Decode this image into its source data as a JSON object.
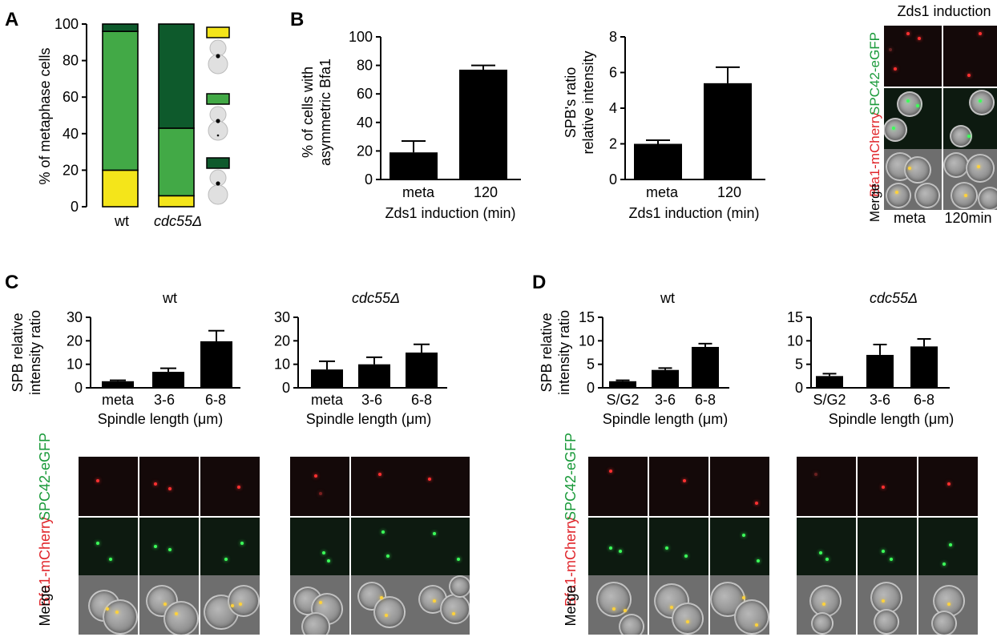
{
  "panels": {
    "A": {
      "letter": "A",
      "ylabel": "% of metaphase cells",
      "yticks": [
        "0",
        "20",
        "40",
        "60",
        "80",
        "100"
      ],
      "categories": [
        "wt",
        "cdc55Δ"
      ],
      "legend_colors": [
        "#f4e51a",
        "#42a946",
        "#0e5a2c"
      ]
    },
    "B": {
      "letter": "B",
      "chart1_ylabel_line1": "% of cells with",
      "chart1_ylabel_line2": "asymmetric Bfa1",
      "chart1_yticks": [
        "0",
        "20",
        "40",
        "60",
        "80",
        "100"
      ],
      "chart2_ylabel_line1": "SPB's ratio",
      "chart2_ylabel_line2": "relative intensity",
      "chart2_yticks": [
        "0",
        "2",
        "4",
        "6",
        "8"
      ],
      "categories": [
        "meta",
        "120"
      ],
      "xlabel": "Zds1 induction (min)",
      "micro_title": "Zds1 induction",
      "micro_cols": [
        "meta",
        "120min"
      ],
      "row_label_red": "Bfa1-mCherry",
      "row_label_green": "SPC42-eGFP",
      "row_label_merge": "Merge"
    },
    "C": {
      "letter": "C",
      "ylabel_line1": "SPB relative",
      "ylabel_line2": "intensity ratio",
      "titles": [
        "wt",
        "cdc55Δ"
      ],
      "yticks": [
        "0",
        "10",
        "20",
        "30"
      ],
      "categories": [
        "meta",
        "3-6",
        "6-8"
      ],
      "xlabel": "Spindle length (μm)",
      "row_label_red": "Bfa1-mCherry",
      "row_label_green": "SPC42-eGFP",
      "row_label_merge": "Merge"
    },
    "D": {
      "letter": "D",
      "ylabel_line1": "SPB relative",
      "ylabel_line2": "intensity ratio",
      "titles": [
        "wt",
        "cdc55Δ"
      ],
      "yticks": [
        "0",
        "5",
        "10",
        "15"
      ],
      "categories": [
        "S/G2",
        "3-6",
        "6-8"
      ],
      "xlabel": "Spindle length (μm)",
      "row_label_red": "Bfa1-mCherry",
      "row_label_green": "SPC42-eGFP",
      "row_label_merge": "Merge"
    }
  },
  "chart_data": [
    {
      "panel": "A",
      "type": "bar",
      "stacked": true,
      "ylabel": "% of metaphase cells",
      "ylim": [
        0,
        100
      ],
      "categories": [
        "wt",
        "cdc55Δ"
      ],
      "series": [
        {
          "color": "#f4e51a",
          "values": [
            20,
            6
          ]
        },
        {
          "color": "#42a946",
          "values": [
            76,
            37
          ]
        },
        {
          "color": "#0e5a2c",
          "values": [
            4,
            57
          ]
        }
      ]
    },
    {
      "panel": "B-left",
      "type": "bar",
      "ylabel": "% of cells with asymmetric Bfa1",
      "xlabel": "Zds1 induction (min)",
      "ylim": [
        0,
        100
      ],
      "categories": [
        "meta",
        "120"
      ],
      "values": [
        19,
        77
      ],
      "errors": [
        8,
        3
      ]
    },
    {
      "panel": "B-middle",
      "type": "bar",
      "ylabel": "SPB's ratio relative intensity",
      "xlabel": "Zds1 induction (min)",
      "ylim": [
        0,
        8
      ],
      "categories": [
        "meta",
        "120"
      ],
      "values": [
        2.0,
        5.4
      ],
      "errors": [
        0.2,
        0.9
      ]
    },
    {
      "panel": "C-wt",
      "type": "bar",
      "title": "wt",
      "ylabel": "SPB relative intensity ratio",
      "xlabel": "Spindle length (μm)",
      "ylim": [
        0,
        30
      ],
      "categories": [
        "meta",
        "3-6",
        "6-8"
      ],
      "values": [
        2.8,
        6.8,
        19.8
      ],
      "errors": [
        0.4,
        1.5,
        4.5
      ]
    },
    {
      "panel": "C-cdc55",
      "type": "bar",
      "title": "cdc55Δ",
      "ylabel": "SPB relative intensity ratio",
      "xlabel": "Spindle length (μm)",
      "ylim": [
        0,
        30
      ],
      "categories": [
        "meta",
        "3-6",
        "6-8"
      ],
      "values": [
        7.8,
        10.0,
        15.0
      ],
      "errors": [
        3.5,
        3.0,
        3.5
      ]
    },
    {
      "panel": "D-wt",
      "type": "bar",
      "title": "wt",
      "ylabel": "SPB relative intensity ratio",
      "xlabel": "Spindle length (μm)",
      "ylim": [
        0,
        15
      ],
      "categories": [
        "S/G2",
        "3-6",
        "6-8"
      ],
      "values": [
        1.4,
        3.8,
        8.7
      ],
      "errors": [
        0.2,
        0.4,
        0.7
      ]
    },
    {
      "panel": "D-cdc55",
      "type": "bar",
      "title": "cdc55Δ",
      "ylabel": "SPB relative intensity ratio",
      "xlabel": "Spindle length (μm)",
      "ylim": [
        0,
        15
      ],
      "categories": [
        "S/G2",
        "3-6",
        "6-8"
      ],
      "values": [
        2.5,
        7.0,
        8.8
      ],
      "errors": [
        0.5,
        2.2,
        1.6
      ]
    }
  ]
}
